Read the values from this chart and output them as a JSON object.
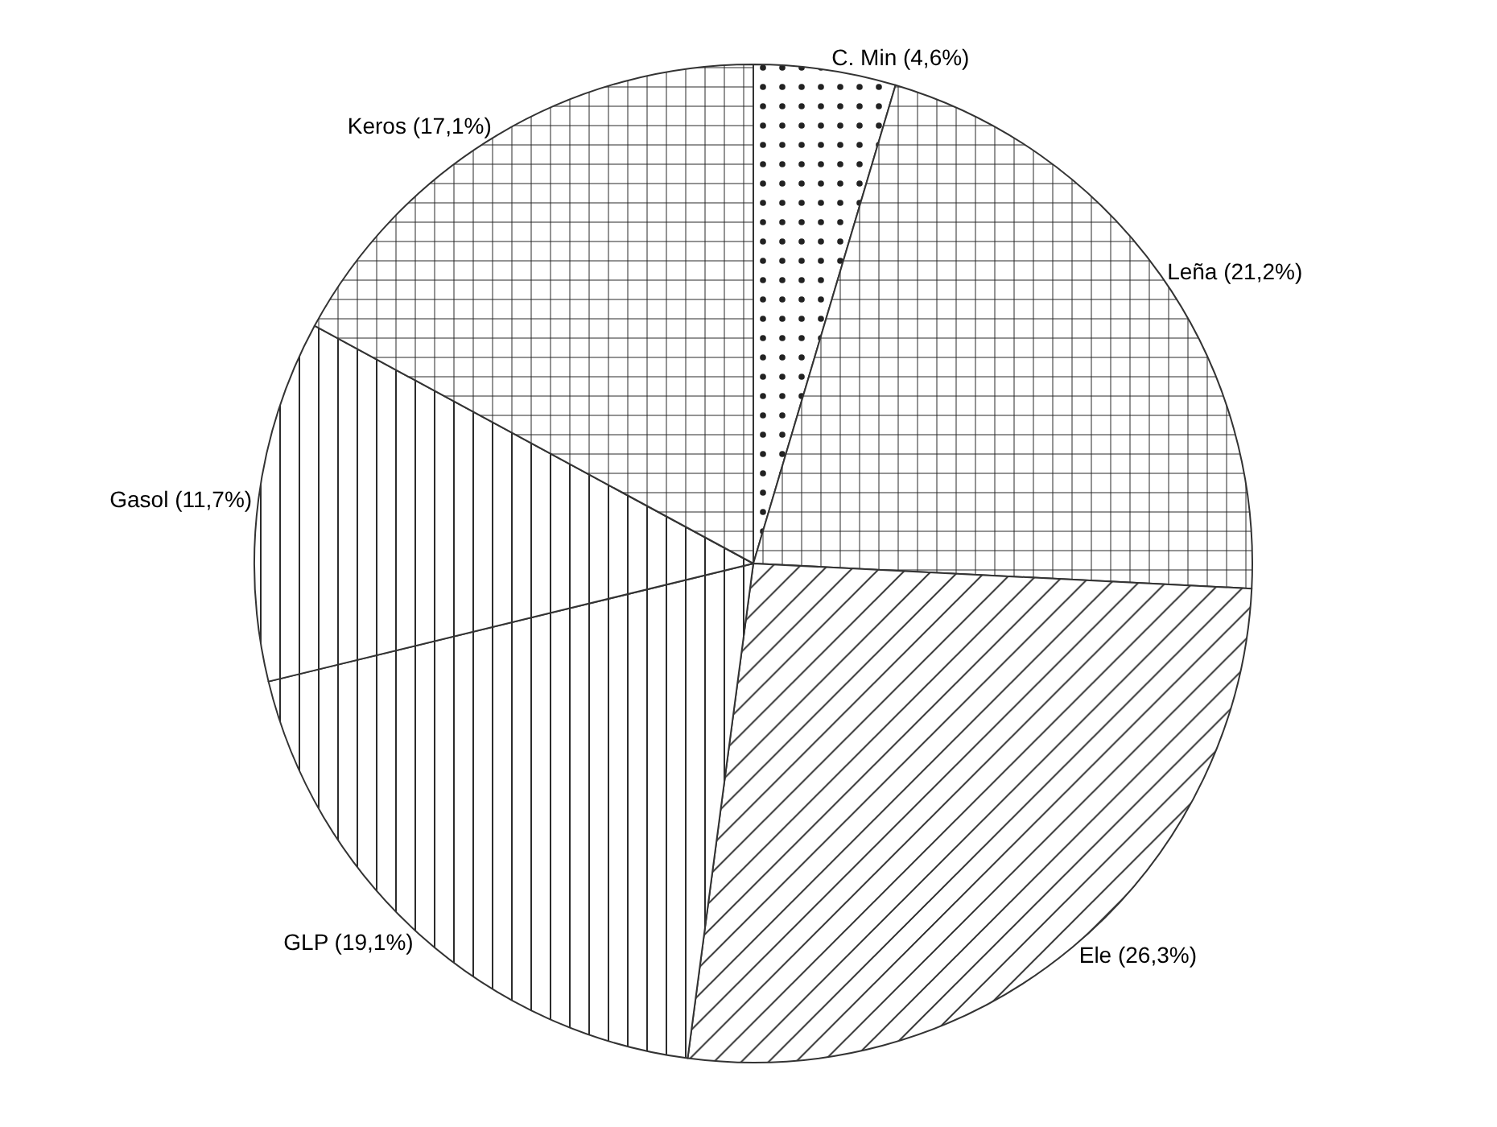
{
  "chart_data": {
    "type": "pie",
    "categories": [
      "C. Min",
      "Leña",
      "Ele",
      "GLP",
      "Gasol",
      "Keros"
    ],
    "values": [
      4.6,
      21.2,
      26.3,
      19.1,
      11.7,
      17.1
    ],
    "value_labels": [
      "(4,6%)",
      "(21,2%)",
      "(26,3%)",
      "(19,1%)",
      "(11,7%)",
      "(17,1%)"
    ],
    "legend": false
  }
}
